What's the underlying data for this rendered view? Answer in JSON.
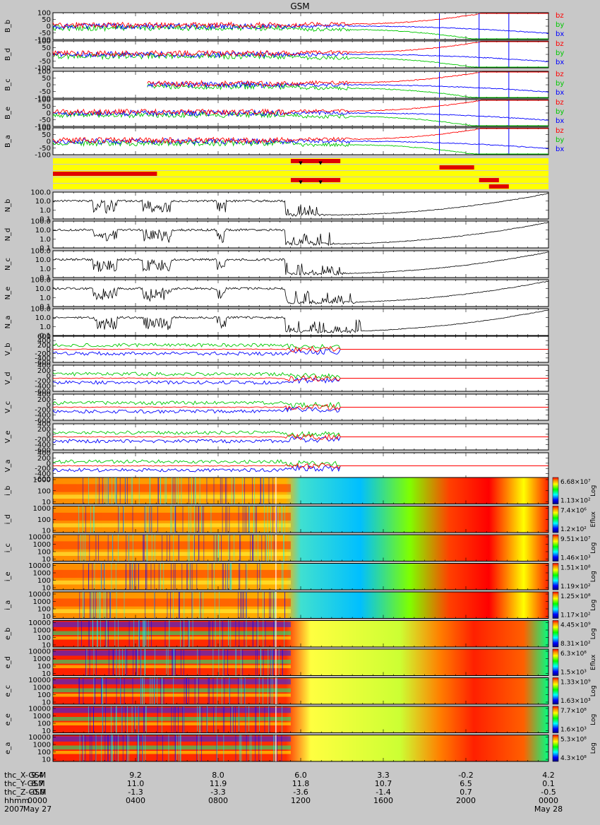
{
  "title": "GSM",
  "colors": {
    "bg": "#c8c8c8",
    "bx": "#0000ff",
    "by": "#00c800",
    "bz": "#ff0000",
    "trace": "#000000",
    "bar_yellow": "#ffff00",
    "bar_red": "#e00000"
  },
  "bfield_panels": [
    {
      "label": "B_b",
      "ticks": [
        "100",
        "50",
        "0",
        "-50",
        "-100"
      ],
      "legend": [
        "bz",
        "by",
        "bx"
      ]
    },
    {
      "label": "B_d",
      "ticks": [
        "100",
        "50",
        "0",
        "-50",
        "-100"
      ],
      "legend": [
        "bz",
        "by",
        "bx"
      ]
    },
    {
      "label": "B_c",
      "ticks": [
        "100",
        "50",
        "0",
        "-50",
        "-100"
      ],
      "legend": [
        "bz",
        "by",
        "bx"
      ]
    },
    {
      "label": "B_e",
      "ticks": [
        "100",
        "50",
        "0",
        "-50",
        "-100"
      ],
      "legend": [
        "bz",
        "by",
        "bx"
      ]
    },
    {
      "label": "B_a",
      "ticks": [
        "100",
        "50",
        "0",
        "-50",
        "-100"
      ],
      "legend": [
        "bz",
        "by",
        "bx"
      ]
    }
  ],
  "density_panels": [
    {
      "label": "N_b",
      "ticks": [
        "100.0",
        "10.0",
        "1.0",
        "0.1"
      ]
    },
    {
      "label": "N_d",
      "ticks": [
        "100.0",
        "10.0",
        "1.0",
        "0.1"
      ]
    },
    {
      "label": "N_c",
      "ticks": [
        "100.0",
        "10.0",
        "1.0",
        "0.1"
      ]
    },
    {
      "label": "N_e",
      "ticks": [
        "100.0",
        "10.0",
        "1.0",
        "0.1"
      ]
    },
    {
      "label": "N_a",
      "ticks": [
        "100.0",
        "10.0",
        "1.0",
        "0.1"
      ]
    }
  ],
  "velocity_panels": [
    {
      "label": "V_b",
      "ticks": [
        "600",
        "400",
        "200",
        "0",
        "-200",
        "-400",
        "-600"
      ]
    },
    {
      "label": "V_d",
      "ticks": [
        "400",
        "200",
        "0",
        "-200",
        "-400",
        "-600"
      ]
    },
    {
      "label": "V_c",
      "ticks": [
        "400",
        "200",
        "0",
        "-200",
        "-400",
        "-600"
      ]
    },
    {
      "label": "V_e",
      "ticks": [
        "400",
        "200",
        "0",
        "-200",
        "-400",
        "-600"
      ]
    },
    {
      "label": "V_a",
      "ticks": [
        "400",
        "200",
        "0",
        "-200",
        "-400",
        "-600"
      ]
    }
  ],
  "spectrogram_panels": [
    {
      "label": "i_b",
      "ticks": [
        "1000",
        "100",
        "10"
      ],
      "cmax": "6.68×10⁷",
      "cmin": "1.13×10²",
      "unit": "Log"
    },
    {
      "label": "i_d",
      "ticks": [
        "1000",
        "100",
        "10"
      ],
      "cmax": "7.4×10⁶",
      "cmin": "1.2×10²",
      "unit": "Eflux"
    },
    {
      "label": "i_c",
      "ticks": [
        "10000",
        "1000",
        "100",
        "10"
      ],
      "cmax": "9.51×10⁷",
      "cmin": "1.46×10³",
      "unit": "Log"
    },
    {
      "label": "i_e",
      "ticks": [
        "10000",
        "1000",
        "100",
        "10"
      ],
      "cmax": "1.51×10⁸",
      "cmin": "1.19×10²",
      "unit": "Log"
    },
    {
      "label": "i_a",
      "ticks": [
        "10000",
        "1000",
        "100",
        "10"
      ],
      "cmax": "1.25×10⁸",
      "cmin": "1.17×10²",
      "unit": "Log"
    },
    {
      "label": "e_b",
      "ticks": [
        "10000",
        "1000",
        "100",
        "10"
      ],
      "cmax": "4.45×10⁹",
      "cmin": "8.31×10²",
      "unit": "Log"
    },
    {
      "label": "e_d",
      "ticks": [
        "10000",
        "1000",
        "100",
        "10"
      ],
      "cmax": "6.3×10⁸",
      "cmin": "1.5×10³",
      "unit": "Eflux"
    },
    {
      "label": "e_c",
      "ticks": [
        "10000",
        "1000",
        "100",
        "10"
      ],
      "cmax": "1.33×10⁹",
      "cmin": "1.63×10³",
      "unit": "Log"
    },
    {
      "label": "e_e",
      "ticks": [
        "10000",
        "1000",
        "100",
        "10"
      ],
      "cmax": "7.7×10⁸",
      "cmin": "1.6×10³",
      "unit": "Log"
    },
    {
      "label": "e_a",
      "ticks": [
        "10000",
        "1000",
        "100",
        "10"
      ],
      "cmax": "5.3×10⁸",
      "cmin": "4.3×10⁸",
      "unit": "Log"
    }
  ],
  "mode_bars": [
    {
      "red": [
        [
          0.48,
          0.58
        ]
      ],
      "arrows": [
        0.5,
        0.54
      ]
    },
    {
      "red": [
        [
          0.78,
          0.82
        ],
        [
          0.81,
          0.85
        ]
      ]
    },
    {
      "red": [
        [
          0.0,
          0.21
        ]
      ]
    },
    {
      "red": [
        [
          0.48,
          0.58
        ],
        [
          0.86,
          0.9
        ]
      ],
      "arrows": [
        0.5,
        0.54
      ]
    },
    {
      "red": [
        [
          0.88,
          0.92
        ]
      ]
    }
  ],
  "chart_data": {
    "type": "line",
    "title": "GSM",
    "time_axis": {
      "row_labels": [
        "thc_X-GSM",
        "thc_Y-GSM",
        "thc_Z-GSM",
        "hhmm",
        "2007"
      ],
      "columns": [
        {
          "X": "9.4",
          "Y": "8.7",
          "Z": "-0.0",
          "hhmm": "0000",
          "date": "May 27"
        },
        {
          "X": "9.2",
          "Y": "11.0",
          "Z": "-1.3",
          "hhmm": "0400",
          "date": ""
        },
        {
          "X": "8.0",
          "Y": "11.9",
          "Z": "-3.3",
          "hhmm": "0800",
          "date": ""
        },
        {
          "X": "6.0",
          "Y": "11.8",
          "Z": "-3.6",
          "hhmm": "1200",
          "date": ""
        },
        {
          "X": "3.3",
          "Y": "10.7",
          "Z": "-1.4",
          "hhmm": "1600",
          "date": ""
        },
        {
          "X": "-0.2",
          "Y": "6.5",
          "Z": "0.7",
          "hhmm": "2000",
          "date": ""
        },
        {
          "X": "4.2",
          "Y": "0.1",
          "Z": "-0.5",
          "hhmm": "0000",
          "date": "May 28"
        }
      ]
    },
    "series": [
      {
        "name": "bz"
      },
      {
        "name": "by"
      },
      {
        "name": "bx"
      }
    ]
  }
}
